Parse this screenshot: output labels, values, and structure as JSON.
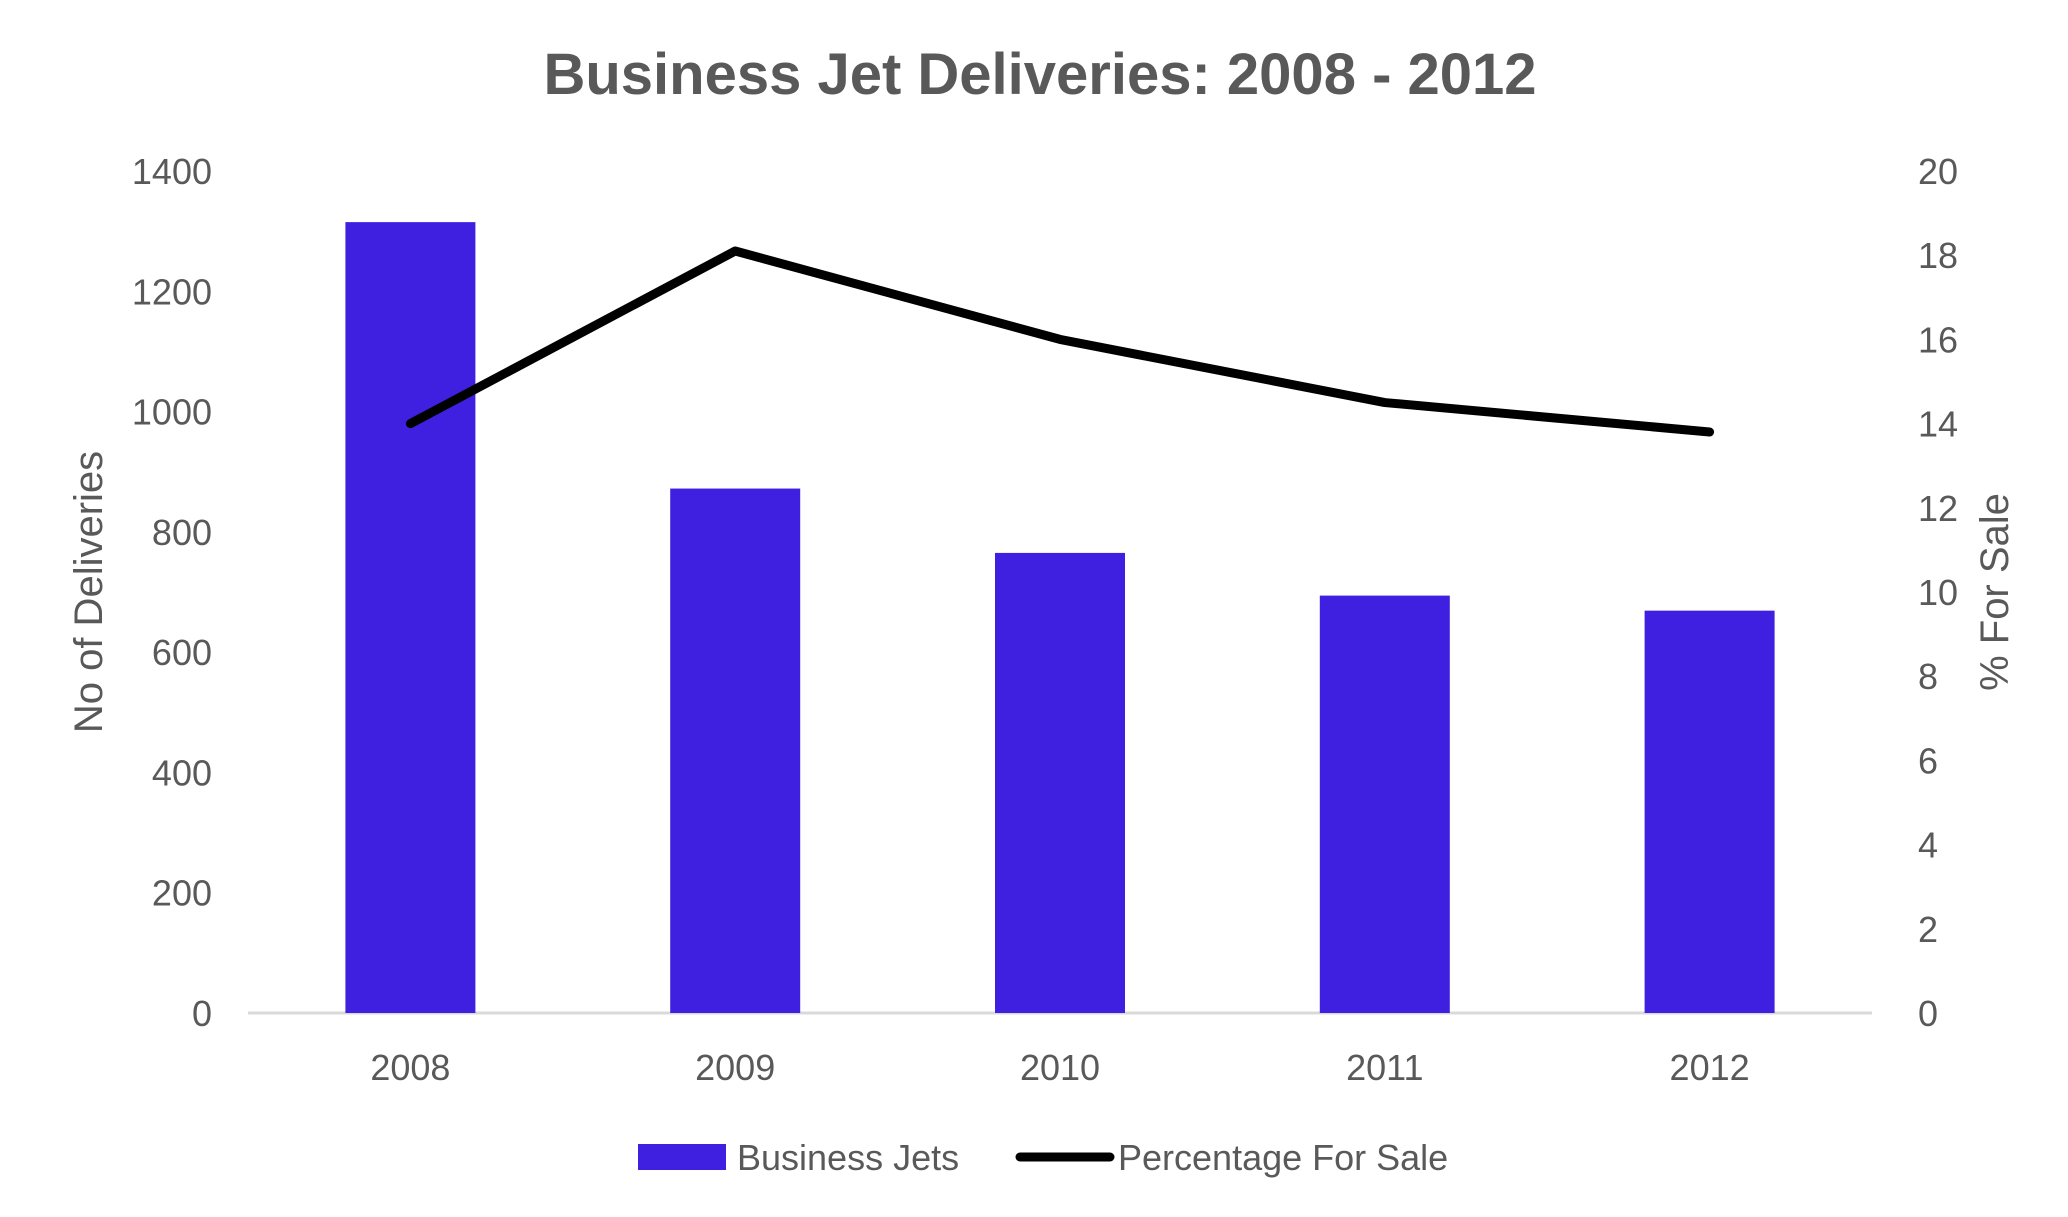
{
  "chart_data": {
    "type": "bar",
    "title": "Business Jet Deliveries: 2008 - 2012",
    "categories": [
      "2008",
      "2009",
      "2010",
      "2011",
      "2012"
    ],
    "series": [
      {
        "name": "Business Jets",
        "type": "bar",
        "axis": "left",
        "color": "#3F20E0",
        "values": [
          1315,
          872,
          765,
          694,
          669
        ]
      },
      {
        "name": "Percentage For Sale",
        "type": "line",
        "axis": "right",
        "color": "#000000",
        "values": [
          14.0,
          18.1,
          16.0,
          14.5,
          13.8
        ]
      }
    ],
    "ylabel": "No of Deliveries",
    "y2label": "% For Sale",
    "ylim": [
      0,
      1400
    ],
    "y2lim": [
      0,
      20
    ],
    "yticks": [
      0,
      200,
      400,
      600,
      800,
      1000,
      1200,
      1400
    ],
    "y2ticks": [
      0,
      2,
      4,
      6,
      8,
      10,
      12,
      14,
      16,
      18,
      20
    ],
    "grid": false,
    "legend_position": "bottom"
  }
}
